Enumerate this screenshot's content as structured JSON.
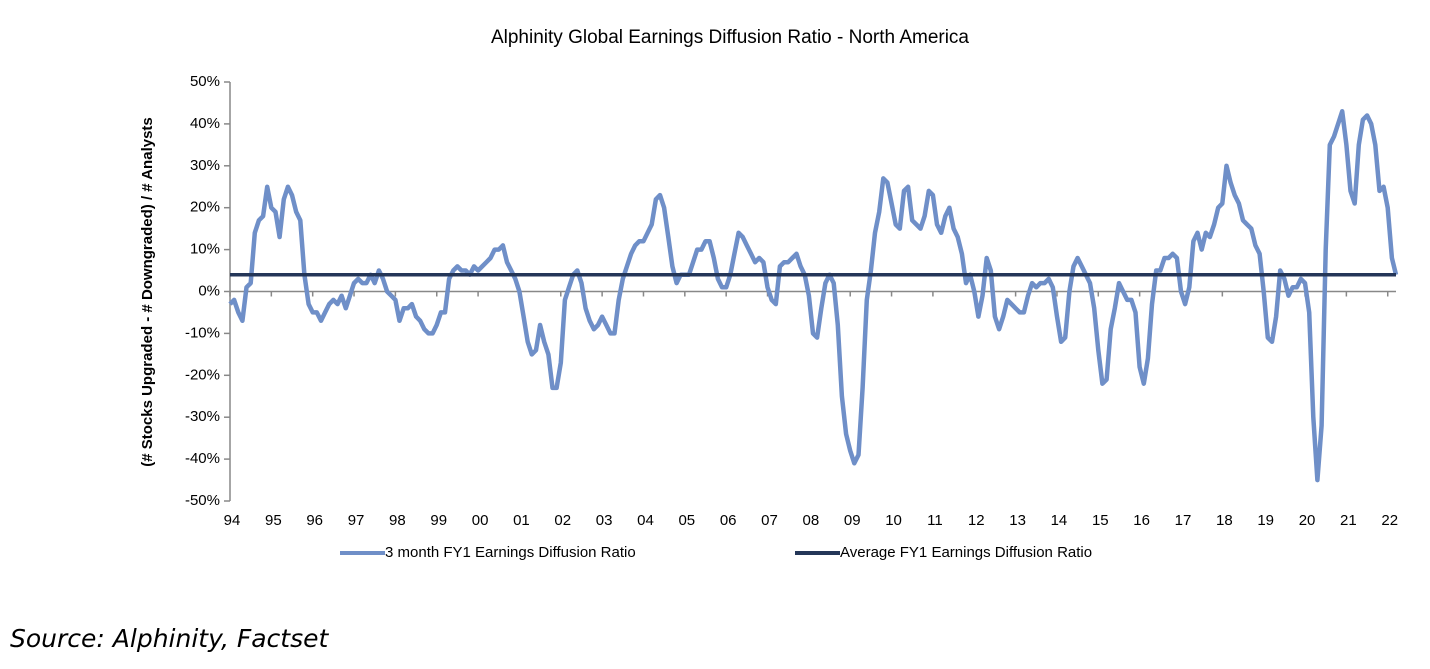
{
  "chart_data": {
    "type": "line",
    "title": "Alphinity Global Earnings Diffusion Ratio - North America",
    "ylabel": "(# Stocks Upgraded - # Downgraded) / # Analysts",
    "source": "Source:  Alphinity, Factset",
    "xlim": [
      1994,
      2022.2
    ],
    "xticks": [
      {
        "value": 1994,
        "label": "94"
      },
      {
        "value": 1995,
        "label": "95"
      },
      {
        "value": 1996,
        "label": "96"
      },
      {
        "value": 1997,
        "label": "97"
      },
      {
        "value": 1998,
        "label": "98"
      },
      {
        "value": 1999,
        "label": "99"
      },
      {
        "value": 2000,
        "label": "00"
      },
      {
        "value": 2001,
        "label": "01"
      },
      {
        "value": 2002,
        "label": "02"
      },
      {
        "value": 2003,
        "label": "03"
      },
      {
        "value": 2004,
        "label": "04"
      },
      {
        "value": 2005,
        "label": "05"
      },
      {
        "value": 2006,
        "label": "06"
      },
      {
        "value": 2007,
        "label": "07"
      },
      {
        "value": 2008,
        "label": "08"
      },
      {
        "value": 2009,
        "label": "09"
      },
      {
        "value": 2010,
        "label": "10"
      },
      {
        "value": 2011,
        "label": "11"
      },
      {
        "value": 2012,
        "label": "12"
      },
      {
        "value": 2013,
        "label": "13"
      },
      {
        "value": 2014,
        "label": "14"
      },
      {
        "value": 2015,
        "label": "15"
      },
      {
        "value": 2016,
        "label": "16"
      },
      {
        "value": 2017,
        "label": "17"
      },
      {
        "value": 2018,
        "label": "18"
      },
      {
        "value": 2019,
        "label": "19"
      },
      {
        "value": 2020,
        "label": "20"
      },
      {
        "value": 2021,
        "label": "21"
      },
      {
        "value": 2022,
        "label": "22"
      }
    ],
    "ylim": [
      -50,
      50
    ],
    "yticks": [
      {
        "value": -50,
        "label": "-50%"
      },
      {
        "value": -40,
        "label": "-40%"
      },
      {
        "value": -30,
        "label": "-30%"
      },
      {
        "value": -20,
        "label": "-20%"
      },
      {
        "value": -10,
        "label": "-10%"
      },
      {
        "value": 0,
        "label": "0%"
      },
      {
        "value": 10,
        "label": "10%"
      },
      {
        "value": 20,
        "label": "20%"
      },
      {
        "value": 30,
        "label": "30%"
      },
      {
        "value": 40,
        "label": "40%"
      },
      {
        "value": 50,
        "label": "50%"
      }
    ],
    "grid": false,
    "legend": "bottom",
    "series": [
      {
        "name": "3 month FY1 Earnings Diffusion Ratio",
        "color": "#6f8fc8",
        "x": [
          1994,
          1994.1,
          1994.2,
          1994.3,
          1994.4,
          1994.5,
          1994.6,
          1994.7,
          1994.8,
          1994.9,
          1995,
          1995.1,
          1995.2,
          1995.3,
          1995.4,
          1995.5,
          1995.6,
          1995.7,
          1995.8,
          1995.9,
          1996,
          1996.1,
          1996.2,
          1996.3,
          1996.4,
          1996.5,
          1996.6,
          1996.7,
          1996.8,
          1996.9,
          1997,
          1997.1,
          1997.2,
          1997.3,
          1997.4,
          1997.5,
          1997.6,
          1997.7,
          1997.8,
          1997.9,
          1998,
          1998.1,
          1998.2,
          1998.3,
          1998.4,
          1998.5,
          1998.6,
          1998.7,
          1998.8,
          1998.9,
          1999,
          1999.1,
          1999.2,
          1999.3,
          1999.4,
          1999.5,
          1999.6,
          1999.7,
          1999.8,
          1999.9,
          2000,
          2000.1,
          2000.2,
          2000.3,
          2000.4,
          2000.5,
          2000.6,
          2000.7,
          2000.8,
          2000.9,
          2001,
          2001.1,
          2001.2,
          2001.3,
          2001.4,
          2001.5,
          2001.6,
          2001.7,
          2001.8,
          2001.9,
          2002,
          2002.1,
          2002.2,
          2002.3,
          2002.4,
          2002.5,
          2002.6,
          2002.7,
          2002.8,
          2002.9,
          2003,
          2003.1,
          2003.2,
          2003.3,
          2003.4,
          2003.5,
          2003.6,
          2003.7,
          2003.8,
          2003.9,
          2004,
          2004.1,
          2004.2,
          2004.3,
          2004.4,
          2004.5,
          2004.6,
          2004.7,
          2004.8,
          2004.9,
          2005,
          2005.1,
          2005.2,
          2005.3,
          2005.4,
          2005.5,
          2005.6,
          2005.7,
          2005.8,
          2005.9,
          2006,
          2006.1,
          2006.2,
          2006.3,
          2006.4,
          2006.5,
          2006.6,
          2006.7,
          2006.8,
          2006.9,
          2007,
          2007.1,
          2007.2,
          2007.3,
          2007.4,
          2007.5,
          2007.6,
          2007.7,
          2007.8,
          2007.9,
          2008,
          2008.1,
          2008.2,
          2008.3,
          2008.4,
          2008.5,
          2008.6,
          2008.7,
          2008.8,
          2008.9,
          2009,
          2009.1,
          2009.2,
          2009.3,
          2009.4,
          2009.5,
          2009.6,
          2009.7,
          2009.8,
          2009.9,
          2010,
          2010.1,
          2010.2,
          2010.3,
          2010.4,
          2010.5,
          2010.6,
          2010.7,
          2010.8,
          2010.9,
          2011,
          2011.1,
          2011.2,
          2011.3,
          2011.4,
          2011.5,
          2011.6,
          2011.7,
          2011.8,
          2011.9,
          2012,
          2012.1,
          2012.2,
          2012.3,
          2012.4,
          2012.5,
          2012.6,
          2012.7,
          2012.8,
          2012.9,
          2013,
          2013.1,
          2013.2,
          2013.3,
          2013.4,
          2013.5,
          2013.6,
          2013.7,
          2013.8,
          2013.9,
          2014,
          2014.1,
          2014.2,
          2014.3,
          2014.4,
          2014.5,
          2014.6,
          2014.7,
          2014.8,
          2014.9,
          2015,
          2015.1,
          2015.2,
          2015.3,
          2015.4,
          2015.5,
          2015.6,
          2015.7,
          2015.8,
          2015.9,
          2016,
          2016.1,
          2016.2,
          2016.3,
          2016.4,
          2016.5,
          2016.6,
          2016.7,
          2016.8,
          2016.9,
          2017,
          2017.1,
          2017.2,
          2017.3,
          2017.4,
          2017.5,
          2017.6,
          2017.7,
          2017.8,
          2017.9,
          2018,
          2018.1,
          2018.2,
          2018.3,
          2018.4,
          2018.5,
          2018.6,
          2018.7,
          2018.8,
          2018.9,
          2019,
          2019.1,
          2019.2,
          2019.3,
          2019.4,
          2019.5,
          2019.6,
          2019.7,
          2019.8,
          2019.9,
          2020,
          2020.1,
          2020.2,
          2020.3,
          2020.4,
          2020.5,
          2020.6,
          2020.7,
          2020.8,
          2020.9,
          2021,
          2021.1,
          2021.2,
          2021.3,
          2021.4,
          2021.5,
          2021.6,
          2021.7,
          2021.8,
          2021.9,
          2022,
          2022.1,
          2022.2
        ],
        "values": [
          -3,
          -2,
          -5,
          -7,
          1,
          2,
          14,
          17,
          18,
          25,
          20,
          19,
          13,
          22,
          25,
          23,
          19,
          17,
          4,
          -3,
          -5,
          -5,
          -7,
          -5,
          -3,
          -2,
          -3,
          -1,
          -4,
          -1,
          2,
          3,
          2,
          2,
          4,
          2,
          5,
          3,
          0,
          -1,
          -2,
          -7,
          -4,
          -4,
          -3,
          -6,
          -7,
          -9,
          -10,
          -10,
          -8,
          -5,
          -5,
          3,
          5,
          6,
          5,
          5,
          4,
          6,
          5,
          6,
          7,
          8,
          10,
          10,
          11,
          7,
          5,
          3,
          0,
          -6,
          -12,
          -15,
          -14,
          -8,
          -12,
          -15,
          -23,
          -23,
          -17,
          -2,
          1,
          4,
          5,
          2,
          -4,
          -7,
          -9,
          -8,
          -6,
          -8,
          -10,
          -10,
          -2,
          3,
          6,
          9,
          11,
          12,
          12,
          14,
          16,
          22,
          23,
          20,
          13,
          6,
          2,
          4,
          4,
          4,
          7,
          10,
          10,
          12,
          12,
          8,
          3,
          1,
          1,
          4,
          9,
          14,
          13,
          11,
          9,
          7,
          8,
          7,
          1,
          -2,
          -3,
          6,
          7,
          7,
          8,
          9,
          6,
          4,
          -1,
          -10,
          -11,
          -4,
          2,
          4,
          2,
          -8,
          -25,
          -34,
          -38,
          -41,
          -39,
          -23,
          -2,
          5,
          14,
          19,
          27,
          26,
          21,
          16,
          15,
          24,
          25,
          17,
          16,
          15,
          18,
          24,
          23,
          16,
          14,
          18,
          20,
          15,
          13,
          9,
          2,
          4,
          0,
          -6,
          -1,
          8,
          5,
          -6,
          -9,
          -6,
          -2,
          -3,
          -4,
          -5,
          -5,
          -1,
          2,
          1,
          2,
          2,
          3,
          1,
          -6,
          -12,
          -11,
          0,
          6,
          8,
          6,
          4,
          2,
          -4,
          -14,
          -22,
          -21,
          -9,
          -4,
          2,
          0,
          -2,
          -2,
          -5,
          -18,
          -22,
          -16,
          -3,
          5,
          5,
          8,
          8,
          9,
          8,
          0,
          -3,
          1,
          12,
          14,
          10,
          14,
          13,
          16,
          20,
          21,
          30,
          26,
          23,
          21,
          17,
          16,
          15,
          11,
          9,
          0,
          -11,
          -12,
          -6,
          5,
          3,
          -1,
          1,
          1,
          3,
          2,
          -5,
          -30,
          -45,
          -32,
          10,
          35,
          37,
          40,
          43,
          35,
          24,
          21,
          35,
          41,
          42,
          40,
          35,
          24,
          25,
          20,
          8,
          4
        ]
      },
      {
        "name": "Average FY1 Earnings Diffusion Ratio",
        "color": "#243658",
        "x": [
          1994,
          2022.2
        ],
        "values": [
          4,
          4
        ]
      }
    ]
  }
}
